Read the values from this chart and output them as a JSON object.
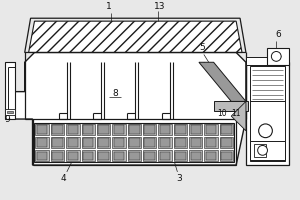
{
  "bg_color": "#e8e8e8",
  "line_color": "#1a1a1a",
  "white": "#ffffff",
  "gray1": "#999999",
  "gray2": "#bbbbbb",
  "gray3": "#555555",
  "figsize": [
    3.0,
    2.0
  ],
  "dpi": 100,
  "label_fs": 6.5
}
